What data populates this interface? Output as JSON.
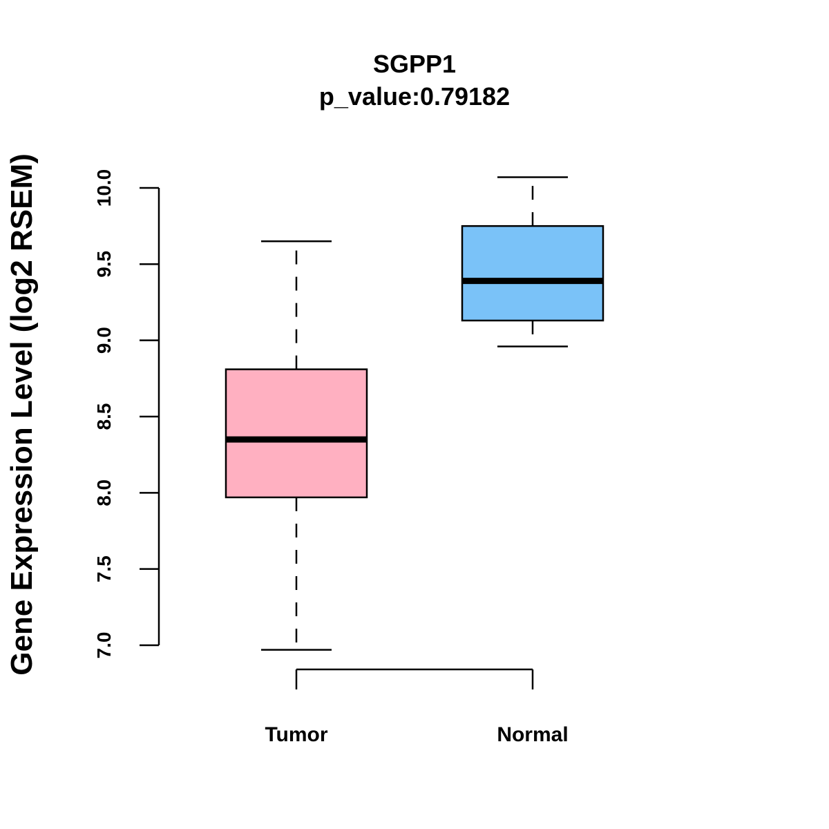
{
  "chart_data": {
    "type": "boxplot",
    "title": "SGPP1",
    "subtitle": "p_value:0.79182",
    "xlabel": "",
    "ylabel": "Gene Expression Level (log2 RSEM)",
    "ylim": [
      7.0,
      10.0
    ],
    "yticks": [
      "7.0",
      "7.5",
      "8.0",
      "8.5",
      "9.0",
      "9.5",
      "10.0"
    ],
    "grid": false,
    "categories": [
      "Tumor",
      "Normal"
    ],
    "boxes": [
      {
        "name": "Tumor",
        "whisker_low": 6.97,
        "q1": 7.97,
        "median": 8.35,
        "q3": 8.81,
        "whisker_high": 9.65,
        "color": "#FFB0C1"
      },
      {
        "name": "Normal",
        "whisker_low": 8.96,
        "q1": 9.13,
        "median": 9.39,
        "q3": 9.75,
        "whisker_high": 10.07,
        "color": "#7AC2F8"
      }
    ]
  }
}
